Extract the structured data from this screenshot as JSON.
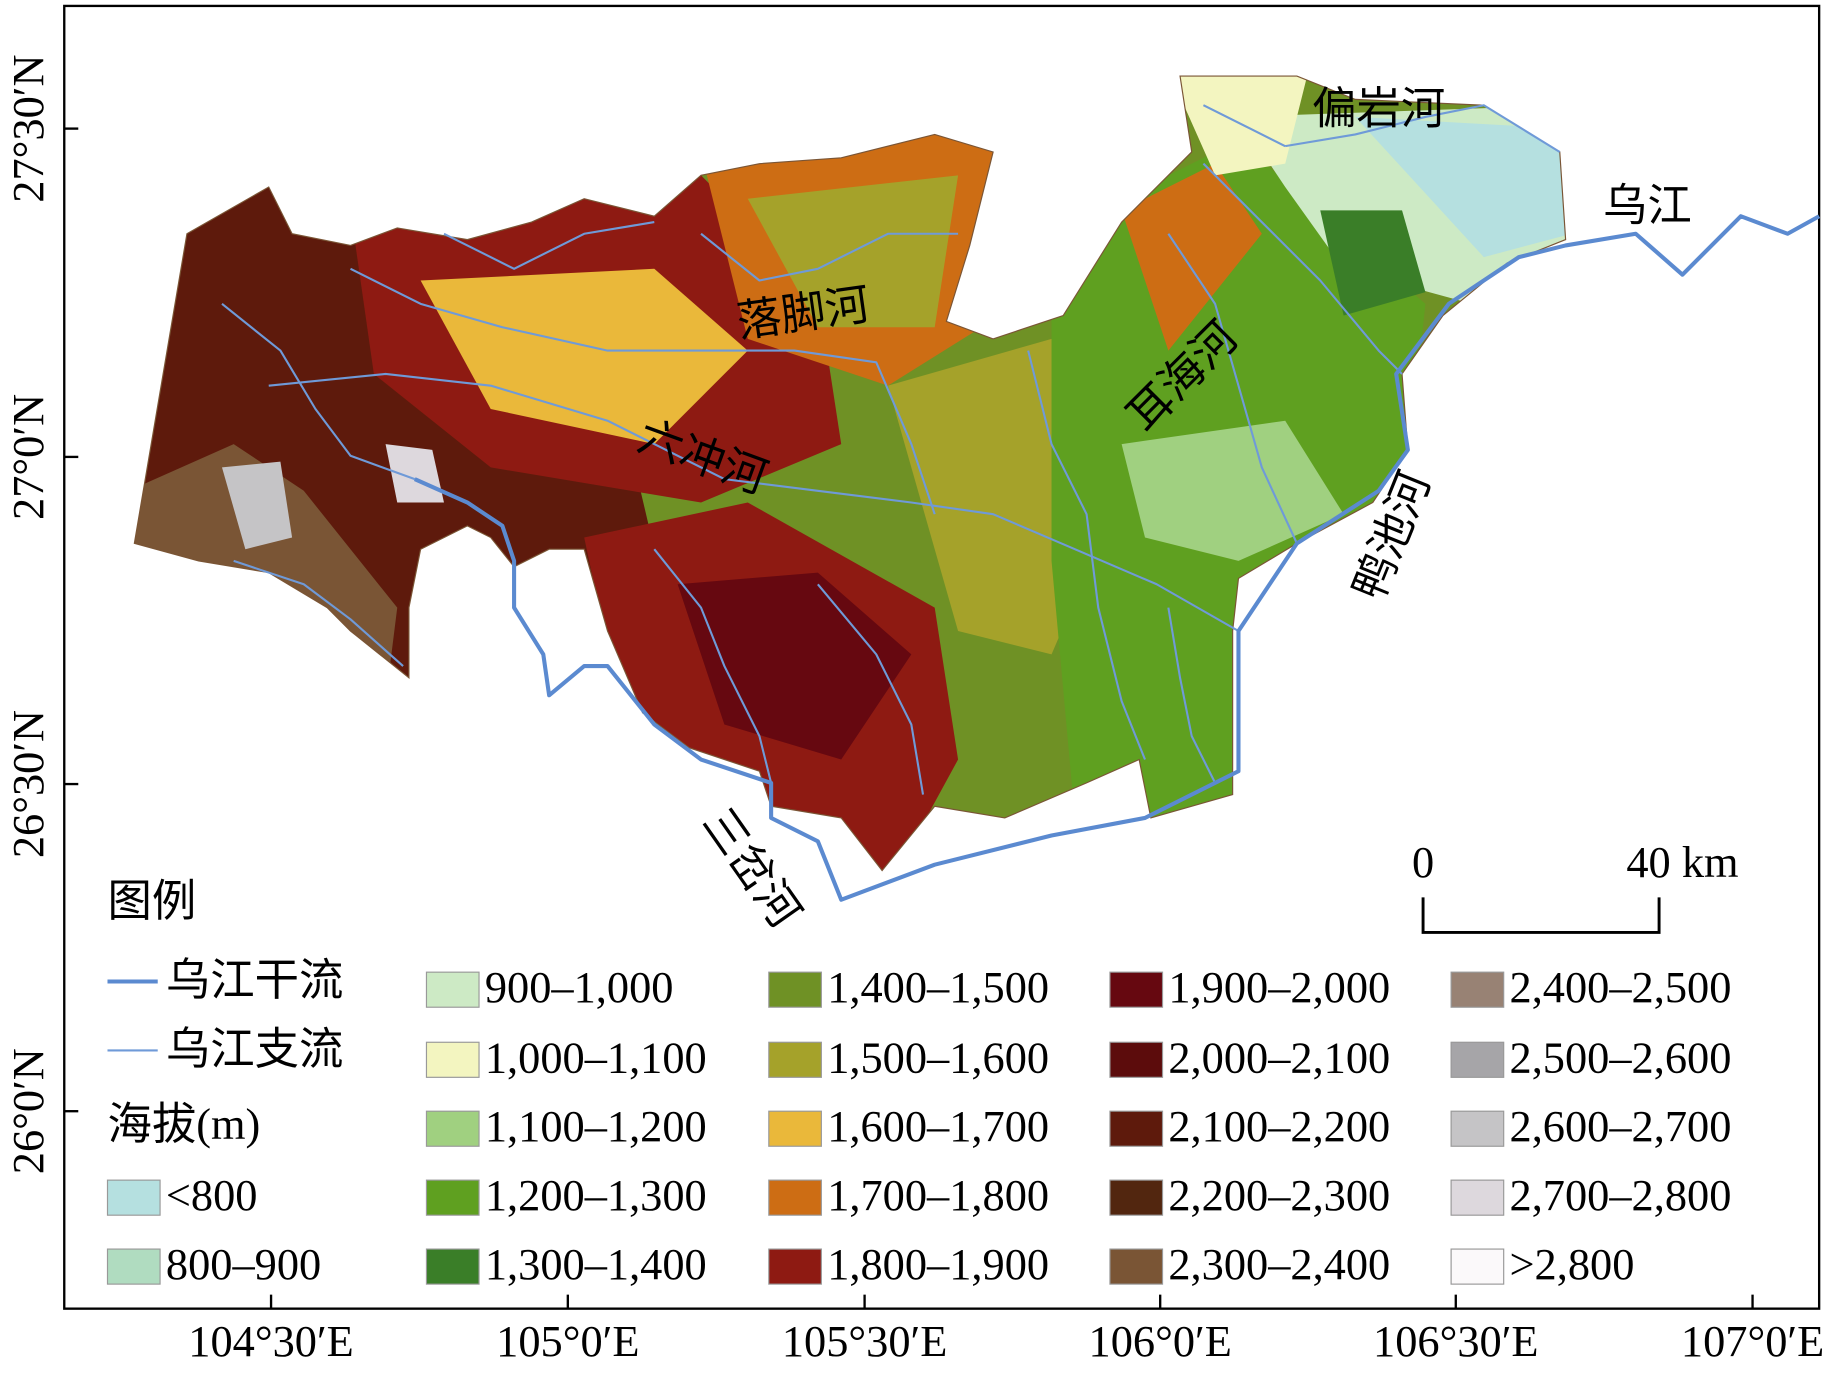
{
  "map": {
    "x_ticks": [
      "104°30′E",
      "105°0′E",
      "105°30′E",
      "106°0′E",
      "106°30′E",
      "107°0′E"
    ],
    "y_ticks": [
      "27°30′N",
      "27°0′N",
      "26°30′N",
      "26°0′N"
    ],
    "river_labels": [
      "偏岩河",
      "乌江",
      "落脚河",
      "耳海河",
      "六冲河",
      "鸭池河",
      "三岔河"
    ],
    "scale_bar": {
      "start": "0",
      "end": "40 km"
    }
  },
  "legend": {
    "title": "图例",
    "main_river": "乌江干流",
    "tributary": "乌江支流",
    "elevation_title": "海拔(m)",
    "elevation": [
      {
        "label": "<800",
        "color": "#b5e0e0"
      },
      {
        "label": "800–900",
        "color": "#b0dcc0"
      },
      {
        "label": "900–1,000",
        "color": "#cdeac5"
      },
      {
        "label": "1,000–1,100",
        "color": "#f3f5c0"
      },
      {
        "label": "1,100–1,200",
        "color": "#a0d080"
      },
      {
        "label": "1,200–1,300",
        "color": "#5fa020"
      },
      {
        "label": "1,300–1,400",
        "color": "#3a7e28"
      },
      {
        "label": "1,400–1,500",
        "color": "#6f9125"
      },
      {
        "label": "1,500–1,600",
        "color": "#a5a22a"
      },
      {
        "label": "1,600–1,700",
        "color": "#eab83a"
      },
      {
        "label": "1,700–1,800",
        "color": "#cd6d14"
      },
      {
        "label": "1,800–1,900",
        "color": "#8e1a12"
      },
      {
        "label": "1,900–2,000",
        "color": "#660810"
      },
      {
        "label": "2,000–2,100",
        "color": "#5c0c0c"
      },
      {
        "label": "2,100–2,200",
        "color": "#5e1a0c"
      },
      {
        "label": "2,200–2,300",
        "color": "#52260f"
      },
      {
        "label": "2,300–2,400",
        "color": "#7a5535"
      },
      {
        "label": "2,400–2,500",
        "color": "#988274"
      },
      {
        "label": "2,500–2,600",
        "color": "#a6a5a8"
      },
      {
        "label": "2,600–2,700",
        "color": "#c5c4c6"
      },
      {
        "label": "2,700–2,800",
        "color": "#ddd8dd"
      },
      {
        "label": ">2,800",
        "color": "#fbf9fa"
      }
    ]
  }
}
